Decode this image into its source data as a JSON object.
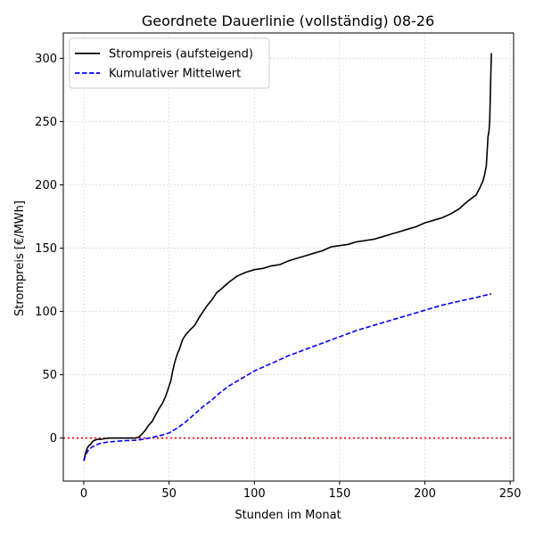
{
  "chart_data": {
    "type": "line",
    "title": "Geordnete Dauerlinie (vollständig) 08-26",
    "xlabel": "Stunden im Monat",
    "ylabel": "Strompreis [€/MWh]",
    "xlim": [
      -12,
      252
    ],
    "ylim": [
      -34,
      320
    ],
    "xticks": [
      0,
      50,
      100,
      150,
      200,
      250
    ],
    "yticks": [
      0,
      50,
      100,
      150,
      200,
      250,
      300
    ],
    "grid": true,
    "legend_position": "top-left",
    "reference_line": {
      "y": 0,
      "color": "#ff0000",
      "style": "dotted"
    },
    "series": [
      {
        "name": "Strompreis (aufsteigend)",
        "color": "#000000",
        "style": "solid",
        "x": [
          0,
          1,
          2,
          3,
          4,
          5,
          6,
          7,
          8,
          10,
          12,
          15,
          20,
          25,
          30,
          32,
          34,
          36,
          38,
          40,
          42,
          44,
          46,
          48,
          50,
          51,
          52,
          53,
          54,
          55,
          56,
          58,
          60,
          62,
          65,
          68,
          70,
          72,
          75,
          78,
          80,
          85,
          90,
          95,
          100,
          105,
          110,
          115,
          120,
          125,
          130,
          135,
          140,
          145,
          150,
          155,
          160,
          165,
          170,
          175,
          180,
          185,
          190,
          195,
          200,
          205,
          210,
          215,
          220,
          225,
          228,
          230,
          232,
          234,
          235,
          236,
          237,
          237.5,
          238,
          238.5,
          239
        ],
        "values": [
          -18,
          -12,
          -8,
          -6,
          -5,
          -3,
          -2,
          -1.5,
          -1,
          -1,
          -0.5,
          0,
          0,
          0,
          0,
          0.5,
          3,
          6,
          10,
          13,
          18,
          23,
          27,
          33,
          41,
          45,
          52,
          58,
          63,
          67,
          70,
          78,
          82,
          85,
          89,
          96,
          100,
          104,
          109,
          115,
          117,
          123,
          128,
          131,
          133,
          134,
          136,
          137,
          140,
          142,
          144,
          146,
          148,
          151,
          152,
          153,
          155,
          156,
          157,
          159,
          161,
          163,
          165,
          167,
          170,
          172,
          174,
          177,
          181,
          187,
          190,
          192,
          197,
          203,
          208,
          215,
          238,
          242,
          250,
          280,
          304
        ]
      },
      {
        "name": "Kumulativer Mittelwert",
        "color": "#0000ff",
        "style": "dashed",
        "x": [
          0,
          1,
          2,
          3,
          5,
          8,
          10,
          15,
          20,
          25,
          30,
          35,
          40,
          45,
          50,
          55,
          60,
          65,
          70,
          75,
          80,
          85,
          90,
          95,
          100,
          110,
          120,
          130,
          140,
          150,
          160,
          170,
          180,
          190,
          200,
          210,
          220,
          230,
          239
        ],
        "values": [
          -18,
          -14,
          -11,
          -9,
          -7,
          -5,
          -4,
          -3,
          -2.5,
          -2,
          -1.8,
          -1,
          0.5,
          2,
          4,
          8,
          13,
          19,
          25,
          30,
          36,
          41,
          45,
          49,
          53,
          59,
          65,
          70,
          75,
          80,
          85,
          89,
          93,
          97,
          101,
          105,
          108,
          111,
          114
        ]
      }
    ]
  }
}
